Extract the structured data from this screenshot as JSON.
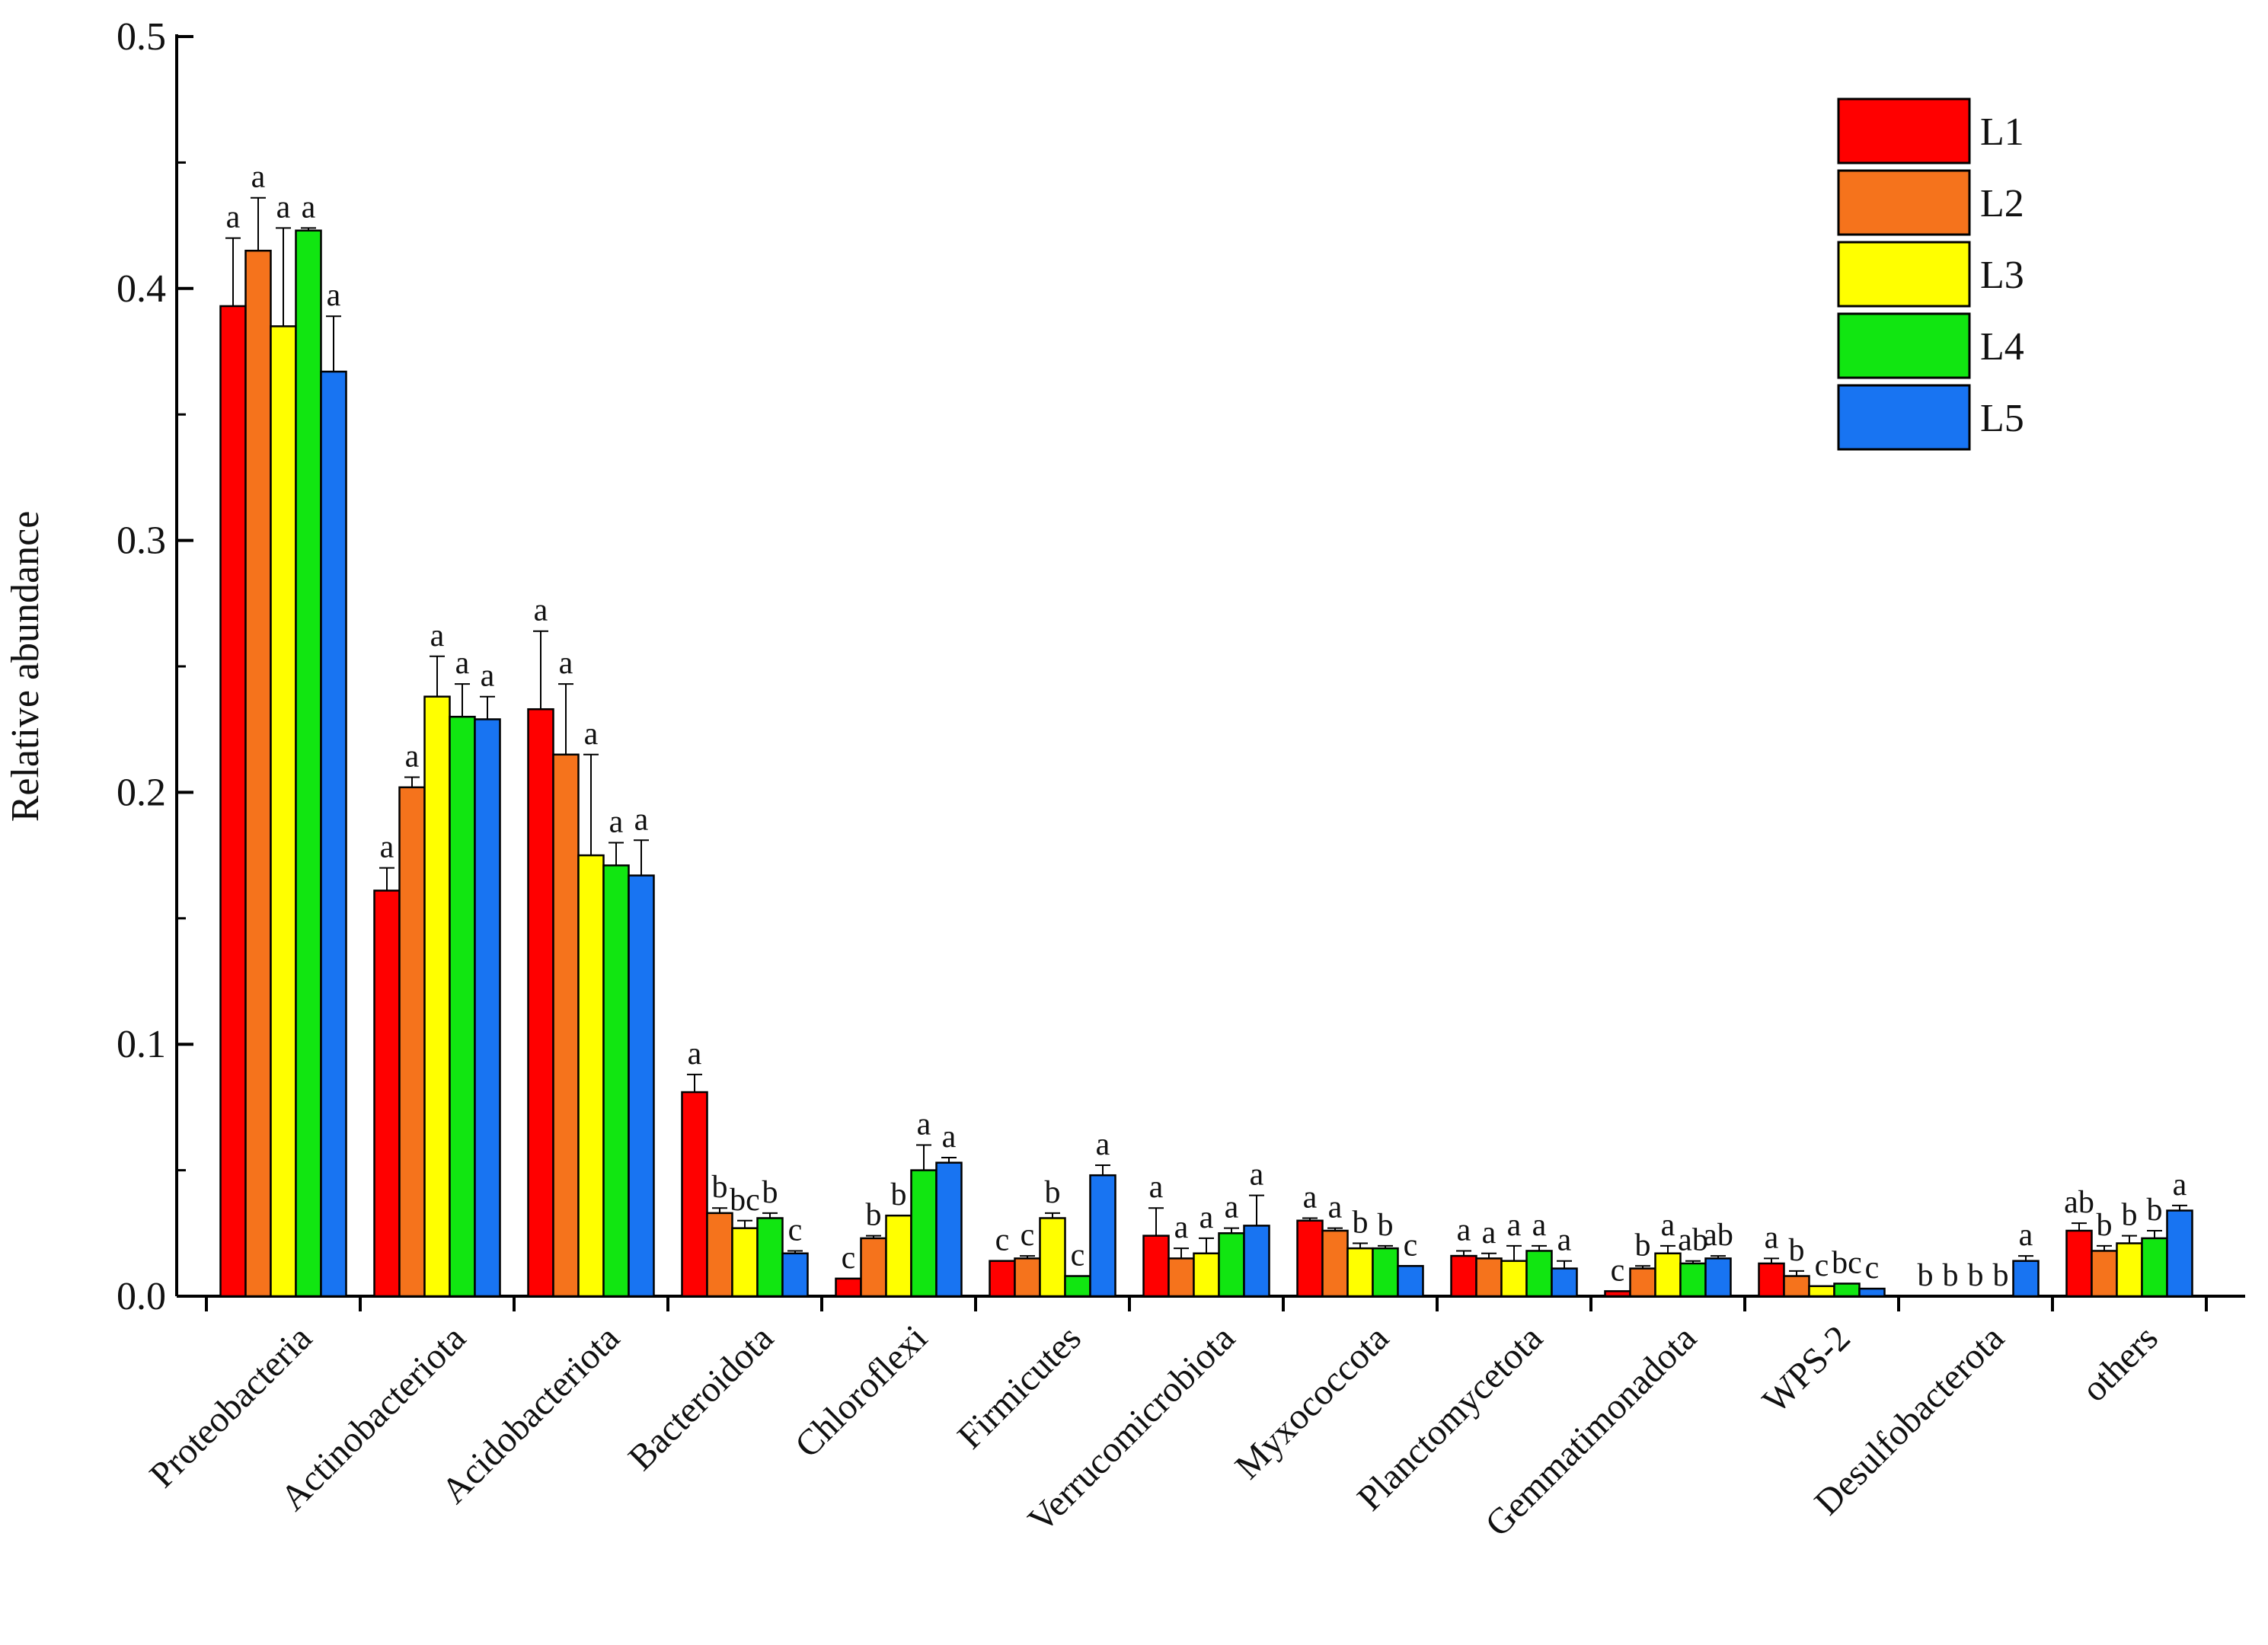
{
  "chart_data": {
    "type": "bar",
    "title": "",
    "xlabel": "",
    "ylabel": "Relative abundance",
    "ylim": [
      0,
      0.5
    ],
    "yticks": [
      "0.0",
      "0.1",
      "0.2",
      "0.3",
      "0.4",
      "0.5"
    ],
    "legend_position": "top-right",
    "categories": [
      "Proteobacteria",
      "Actinobacteriota",
      "Acidobacteriota",
      "Bacteroidota",
      "Chloroflexi",
      "Firmicutes",
      "Verrucomicrobiota",
      "Myxococcota",
      "Planctomycetota",
      "Gemmatimonadota",
      "WPS-2",
      "Desulfobacterota",
      "others"
    ],
    "series": [
      {
        "name": "L1",
        "color": "#ff0000",
        "values": [
          0.393,
          0.161,
          0.233,
          0.081,
          0.007,
          0.014,
          0.024,
          0.03,
          0.016,
          0.002,
          0.013,
          0.0,
          0.026
        ],
        "errors": [
          0.027,
          0.009,
          0.031,
          0.007,
          0.0,
          0.0,
          0.011,
          0.001,
          0.002,
          0.0,
          0.002,
          0.0,
          0.003
        ],
        "labels": [
          "a",
          "a",
          "a",
          "a",
          "c",
          "c",
          "a",
          "a",
          "a",
          "c",
          "a",
          "b",
          "ab"
        ]
      },
      {
        "name": "L2",
        "color": "#f5731c",
        "values": [
          0.415,
          0.202,
          0.215,
          0.033,
          0.023,
          0.015,
          0.015,
          0.026,
          0.015,
          0.011,
          0.008,
          0.0,
          0.018
        ],
        "errors": [
          0.021,
          0.004,
          0.028,
          0.002,
          0.001,
          0.001,
          0.004,
          0.001,
          0.002,
          0.001,
          0.002,
          0.0,
          0.002
        ],
        "labels": [
          "a",
          "a",
          "a",
          "b",
          "b",
          "c",
          "a",
          "a",
          "a",
          "b",
          "b",
          "b",
          "b"
        ]
      },
      {
        "name": "L3",
        "color": "#ffff00",
        "values": [
          0.385,
          0.238,
          0.175,
          0.027,
          0.032,
          0.031,
          0.017,
          0.019,
          0.014,
          0.017,
          0.004,
          0.0,
          0.021
        ],
        "errors": [
          0.039,
          0.016,
          0.04,
          0.003,
          0.0,
          0.002,
          0.006,
          0.002,
          0.006,
          0.003,
          0.0,
          0.0,
          0.003
        ],
        "labels": [
          "a",
          "a",
          "a",
          "bc",
          "b",
          "b",
          "a",
          "b",
          "a",
          "a",
          "c",
          "b",
          "b"
        ]
      },
      {
        "name": "L4",
        "color": "#11e611",
        "values": [
          0.423,
          0.23,
          0.171,
          0.031,
          0.05,
          0.008,
          0.025,
          0.019,
          0.018,
          0.013,
          0.005,
          0.0,
          0.023
        ],
        "errors": [
          0.001,
          0.013,
          0.009,
          0.002,
          0.01,
          0.0,
          0.002,
          0.001,
          0.002,
          0.001,
          0.0,
          0.0,
          0.003
        ],
        "labels": [
          "a",
          "a",
          "a",
          "b",
          "a",
          "c",
          "a",
          "b",
          "a",
          "ab",
          "bc",
          "b",
          "b"
        ]
      },
      {
        "name": "L5",
        "color": "#1874f2",
        "values": [
          0.367,
          0.229,
          0.167,
          0.017,
          0.053,
          0.048,
          0.028,
          0.012,
          0.011,
          0.015,
          0.003,
          0.014,
          0.034
        ],
        "errors": [
          0.022,
          0.009,
          0.014,
          0.001,
          0.002,
          0.004,
          0.012,
          0.0,
          0.003,
          0.001,
          0.0,
          0.002,
          0.002
        ],
        "labels": [
          "a",
          "a",
          "a",
          "c",
          "a",
          "a",
          "a",
          "c",
          "a",
          "ab",
          "c",
          "a",
          "a"
        ]
      }
    ]
  }
}
